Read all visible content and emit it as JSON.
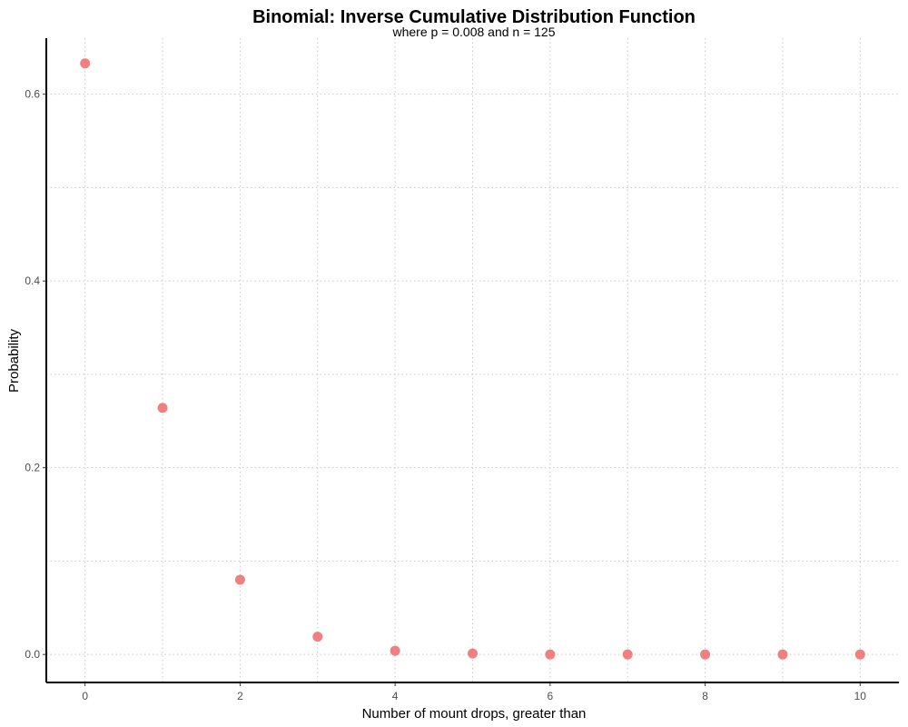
{
  "chart_data": {
    "type": "scatter",
    "title": "Binomial: Inverse Cumulative Distribution Function",
    "subtitle": "where p = 0.008 and n = 125",
    "xlabel": "Number of mount drops, greater than",
    "ylabel": "Probability",
    "xlim": [
      -0.5,
      10.5
    ],
    "ylim": [
      -0.03,
      0.66
    ],
    "x_ticks": [
      0,
      2,
      4,
      6,
      8,
      10
    ],
    "y_ticks": [
      0.0,
      0.2,
      0.4,
      0.6
    ],
    "x_tick_labels": [
      "0",
      "2",
      "4",
      "6",
      "8",
      "10"
    ],
    "y_tick_labels": [
      "0.0",
      "0.2",
      "0.4",
      "0.6"
    ],
    "x_minor_grid": [
      1,
      3,
      5,
      7,
      9
    ],
    "y_minor_grid": [
      0.1,
      0.3,
      0.5
    ],
    "grid": true,
    "legend": "none",
    "point_color": "#f08080",
    "series": [
      {
        "x": [
          0,
          1,
          2,
          3,
          4,
          5,
          6,
          7,
          8,
          9,
          10
        ],
        "y": [
          0.633,
          0.264,
          0.08,
          0.019,
          0.004,
          0.001,
          0.0,
          0.0,
          0.0,
          0.0,
          0.0
        ]
      }
    ]
  }
}
